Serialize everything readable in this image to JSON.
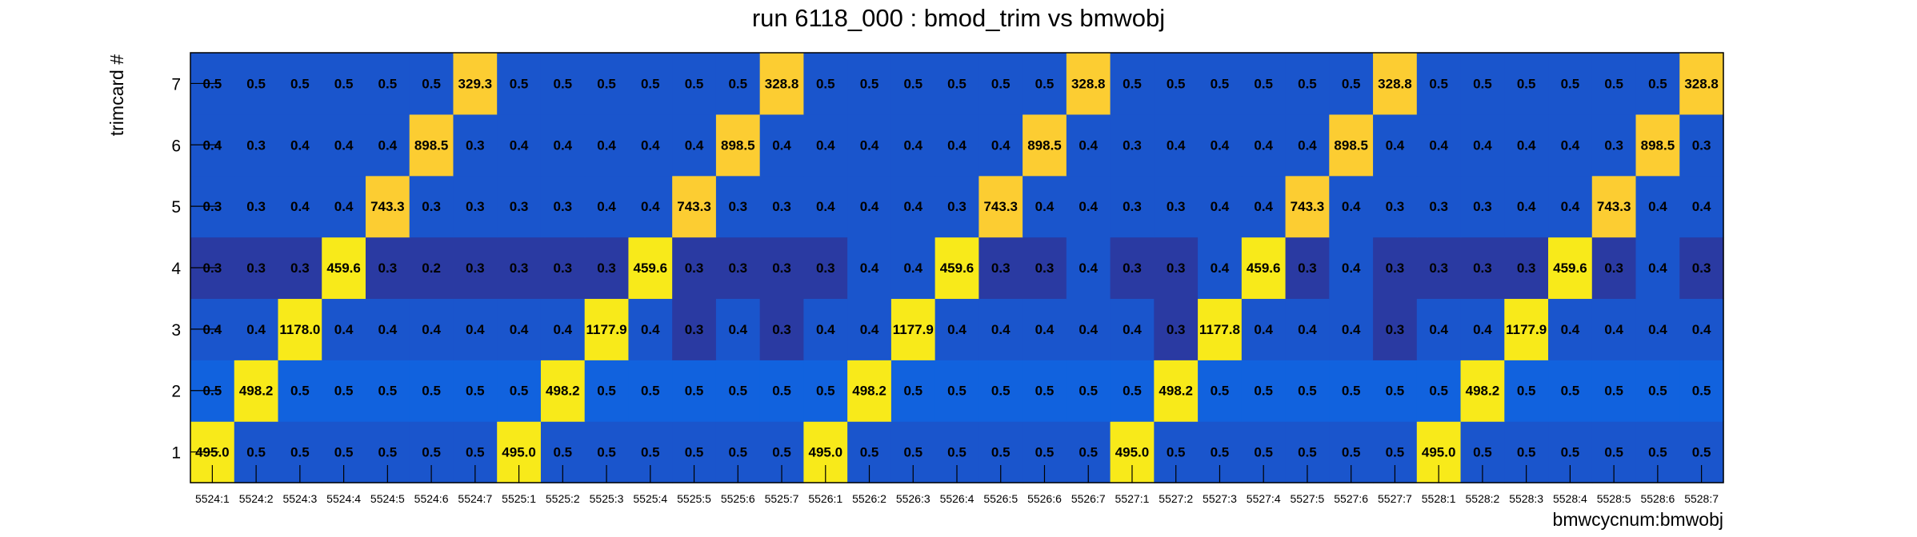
{
  "chart_data": {
    "type": "heatmap",
    "title": "run 6118_000 : bmod_trim vs bmwobj",
    "xlabel": "bmwcycnum:bmwobj",
    "ylabel": "trimcard #",
    "x_categories": [
      "5524:1",
      "5524:2",
      "5524:3",
      "5524:4",
      "5524:5",
      "5524:6",
      "5524:7",
      "5525:1",
      "5525:2",
      "5525:3",
      "5525:4",
      "5525:5",
      "5525:6",
      "5525:7",
      "5526:1",
      "5526:2",
      "5526:3",
      "5526:4",
      "5526:5",
      "5526:6",
      "5526:7",
      "5527:1",
      "5527:2",
      "5527:3",
      "5527:4",
      "5527:5",
      "5527:6",
      "5527:7",
      "5528:1",
      "5528:2",
      "5528:3",
      "5528:4",
      "5528:5",
      "5528:6",
      "5528:7"
    ],
    "y_categories": [
      "1",
      "2",
      "3",
      "4",
      "5",
      "6",
      "7"
    ],
    "values": [
      [
        "495.0",
        "0.5",
        "0.5",
        "0.5",
        "0.5",
        "0.5",
        "0.5",
        "495.0",
        "0.5",
        "0.5",
        "0.5",
        "0.5",
        "0.5",
        "0.5",
        "495.0",
        "0.5",
        "0.5",
        "0.5",
        "0.5",
        "0.5",
        "0.5",
        "495.0",
        "0.5",
        "0.5",
        "0.5",
        "0.5",
        "0.5",
        "0.5",
        "495.0",
        "0.5",
        "0.5",
        "0.5",
        "0.5",
        "0.5",
        "0.5"
      ],
      [
        "0.5",
        "498.2",
        "0.5",
        "0.5",
        "0.5",
        "0.5",
        "0.5",
        "0.5",
        "498.2",
        "0.5",
        "0.5",
        "0.5",
        "0.5",
        "0.5",
        "0.5",
        "498.2",
        "0.5",
        "0.5",
        "0.5",
        "0.5",
        "0.5",
        "0.5",
        "498.2",
        "0.5",
        "0.5",
        "0.5",
        "0.5",
        "0.5",
        "0.5",
        "498.2",
        "0.5",
        "0.5",
        "0.5",
        "0.5",
        "0.5"
      ],
      [
        "0.4",
        "0.4",
        "1178.0",
        "0.4",
        "0.4",
        "0.4",
        "0.4",
        "0.4",
        "0.4",
        "1177.9",
        "0.4",
        "0.3",
        "0.4",
        "0.3",
        "0.4",
        "0.4",
        "1177.9",
        "0.4",
        "0.4",
        "0.4",
        "0.4",
        "0.4",
        "0.3",
        "1177.8",
        "0.4",
        "0.4",
        "0.4",
        "0.3",
        "0.4",
        "0.4",
        "1177.9",
        "0.4",
        "0.4",
        "0.4",
        "0.4"
      ],
      [
        "0.3",
        "0.3",
        "0.3",
        "459.6",
        "0.3",
        "0.2",
        "0.3",
        "0.3",
        "0.3",
        "0.3",
        "459.6",
        "0.3",
        "0.3",
        "0.3",
        "0.3",
        "0.4",
        "0.4",
        "459.6",
        "0.3",
        "0.3",
        "0.4",
        "0.3",
        "0.3",
        "0.4",
        "459.6",
        "0.3",
        "0.4",
        "0.3",
        "0.3",
        "0.3",
        "0.3",
        "459.6",
        "0.3",
        "0.4",
        "0.3"
      ],
      [
        "0.3",
        "0.3",
        "0.4",
        "0.4",
        "743.3",
        "0.3",
        "0.3",
        "0.3",
        "0.3",
        "0.4",
        "0.4",
        "743.3",
        "0.3",
        "0.3",
        "0.4",
        "0.4",
        "0.4",
        "0.3",
        "743.3",
        "0.4",
        "0.4",
        "0.3",
        "0.3",
        "0.4",
        "0.4",
        "743.3",
        "0.4",
        "0.3",
        "0.3",
        "0.3",
        "0.4",
        "0.4",
        "743.3",
        "0.4",
        "0.4"
      ],
      [
        "0.4",
        "0.3",
        "0.4",
        "0.4",
        "0.4",
        "898.5",
        "0.3",
        "0.4",
        "0.4",
        "0.4",
        "0.4",
        "0.4",
        "898.5",
        "0.4",
        "0.4",
        "0.4",
        "0.4",
        "0.4",
        "0.4",
        "898.5",
        "0.4",
        "0.3",
        "0.4",
        "0.4",
        "0.4",
        "0.4",
        "898.5",
        "0.4",
        "0.4",
        "0.4",
        "0.4",
        "0.4",
        "0.3",
        "898.5",
        "0.3"
      ],
      [
        "0.5",
        "0.5",
        "0.5",
        "0.5",
        "0.5",
        "0.5",
        "329.3",
        "0.5",
        "0.5",
        "0.5",
        "0.5",
        "0.5",
        "0.5",
        "328.8",
        "0.5",
        "0.5",
        "0.5",
        "0.5",
        "0.5",
        "0.5",
        "328.8",
        "0.5",
        "0.5",
        "0.5",
        "0.5",
        "0.5",
        "0.5",
        "328.8",
        "0.5",
        "0.5",
        "0.5",
        "0.5",
        "0.5",
        "0.5",
        "328.8"
      ]
    ],
    "colors": {
      "peak_yellow": "#f8ea1a",
      "peak_orange": "#fccd32",
      "base_blue": "#1a55cc",
      "light_blue": "#1162de",
      "dark_blue": "#2a3aa2"
    }
  }
}
